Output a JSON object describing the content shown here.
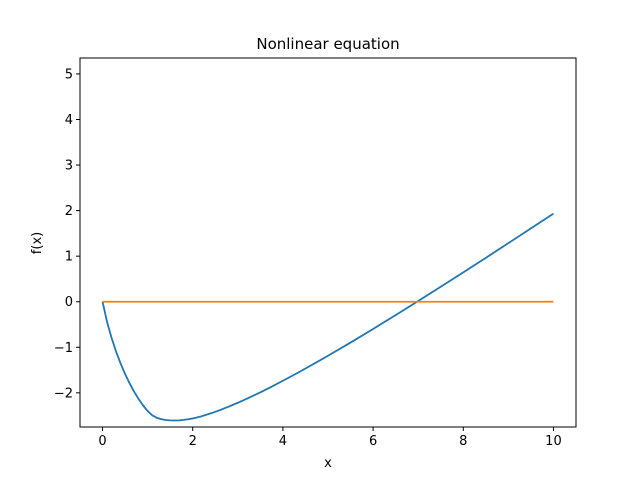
{
  "chart_data": {
    "type": "line",
    "title": "Nonlinear equation",
    "xlabel": "x",
    "ylabel": "f(x)",
    "xlim": [
      -0.5,
      10.5
    ],
    "ylim": [
      -2.75,
      5.35
    ],
    "xticks": [
      0,
      2,
      4,
      6,
      8,
      10
    ],
    "yticks": [
      -2,
      -1,
      0,
      1,
      2,
      3,
      4,
      5
    ],
    "grid": false,
    "series": [
      {
        "color": "#1f77b4",
        "x": [
          0,
          0.1,
          0.2,
          0.3,
          0.4,
          0.5,
          0.6,
          0.7,
          0.8,
          0.9,
          1.0,
          1.1,
          1.2,
          1.3,
          1.4,
          1.5,
          1.6,
          1.7,
          1.8,
          1.9,
          2.0,
          2.2,
          2.4,
          2.6,
          2.8,
          3.0,
          3.25,
          3.5,
          3.75,
          4.0,
          4.25,
          4.5,
          4.75,
          5.0,
          5.5,
          6.0,
          6.5,
          7.0,
          7.5,
          8.0,
          8.5,
          9.0,
          9.5,
          10.0
        ],
        "y": [
          0.0,
          -0.444,
          -0.794,
          -1.093,
          -1.354,
          -1.586,
          -1.792,
          -1.975,
          -2.136,
          -2.278,
          -2.4,
          -2.492,
          -2.546,
          -2.578,
          -2.597,
          -2.605,
          -2.608,
          -2.604,
          -2.594,
          -2.58,
          -2.562,
          -2.513,
          -2.452,
          -2.381,
          -2.302,
          -2.218,
          -2.106,
          -1.988,
          -1.864,
          -1.735,
          -1.603,
          -1.466,
          -1.327,
          -1.186,
          -0.896,
          -0.598,
          -0.294,
          0.015,
          0.328,
          0.644,
          0.963,
          1.285,
          1.609,
          1.933
        ]
      },
      {
        "color": "#ff7f0e",
        "x": [
          0,
          10
        ],
        "y": [
          0,
          0
        ]
      }
    ]
  }
}
